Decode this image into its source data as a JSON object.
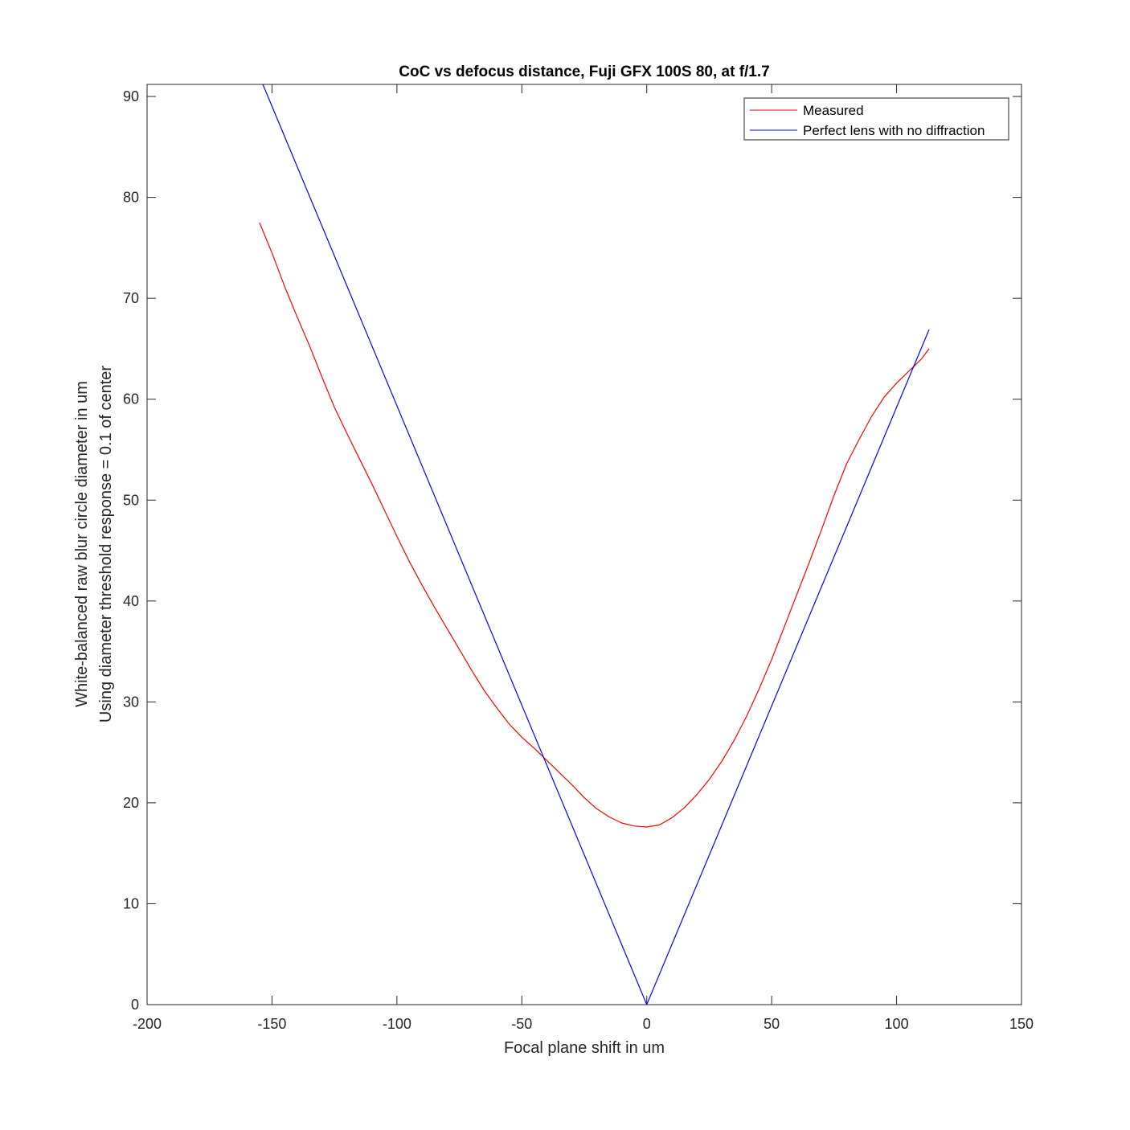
{
  "chart_data": {
    "type": "line",
    "title": "CoC vs defocus distance, Fuji GFX 100S 80, at f/1.7",
    "xlabel": "Focal plane shift in um",
    "ylabel": [
      "White-balanced raw blur circle diameter in um",
      "Using diameter threshold response = 0.1 of center"
    ],
    "xlim": [
      -200,
      150
    ],
    "ylim": [
      0,
      91.2
    ],
    "xticks": [
      -200,
      -150,
      -100,
      -50,
      0,
      50,
      100,
      150
    ],
    "yticks": [
      0,
      10,
      20,
      30,
      40,
      50,
      60,
      70,
      80,
      90
    ],
    "grid": false,
    "legend_position": "top-right",
    "series": [
      {
        "name": "Measured",
        "color": "#ff0000",
        "x": [
          -155,
          -150,
          -145,
          -140,
          -135,
          -130,
          -125,
          -120,
          -115,
          -110,
          -105,
          -100,
          -95,
          -90,
          -85,
          -80,
          -75,
          -70,
          -65,
          -60,
          -55,
          -50,
          -45,
          -40,
          -35,
          -30,
          -25,
          -20,
          -15,
          -10,
          -5,
          0,
          5,
          10,
          15,
          20,
          25,
          30,
          35,
          40,
          45,
          50,
          55,
          60,
          65,
          70,
          75,
          80,
          85,
          90,
          95,
          100,
          105,
          110,
          113
        ],
        "y": [
          77.5,
          74.5,
          71.2,
          68.2,
          65.3,
          62.2,
          59.2,
          56.6,
          54.1,
          51.6,
          49.0,
          46.4,
          43.9,
          41.6,
          39.4,
          37.3,
          35.2,
          33.1,
          31.1,
          29.4,
          27.8,
          26.5,
          25.4,
          24.2,
          23.0,
          21.8,
          20.5,
          19.4,
          18.6,
          18.0,
          17.7,
          17.6,
          17.8,
          18.5,
          19.5,
          20.8,
          22.3,
          24.1,
          26.2,
          28.6,
          31.3,
          34.2,
          37.4,
          40.6,
          43.8,
          47.1,
          50.5,
          53.6,
          56.0,
          58.3,
          60.2,
          61.6,
          62.8,
          64.0,
          65.0
        ]
      },
      {
        "name": "Perfect lens with no diffraction",
        "color": "#0000ff",
        "x": [
          -155,
          0,
          113
        ],
        "y": [
          92.0,
          0,
          66.9
        ]
      }
    ]
  }
}
